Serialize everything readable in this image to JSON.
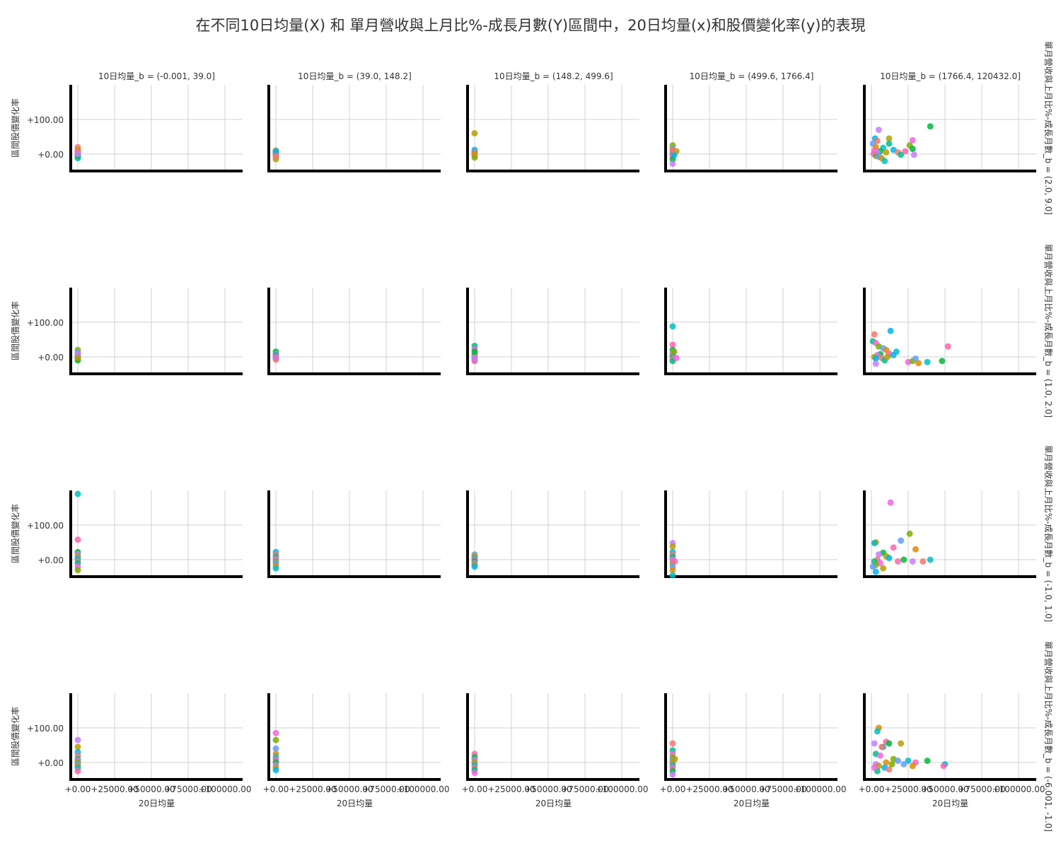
{
  "chart_data": {
    "type": "scatter",
    "title": "在不同10日均量(X) 和 單月營收與上月比%-成長月數(Y)區間中，20日均量(x)和股價變化率(y)的表現",
    "xlabel": "20日均量",
    "ylabel": "區間股價變化率",
    "xlim": [
      -3000,
      115000
    ],
    "ylim": [
      -45,
      200
    ],
    "x_ticks": [
      0,
      25000,
      50000,
      75000,
      100000
    ],
    "x_tick_labels": [
      "+0.00",
      "+25000.00",
      "+50000.00",
      "+75000.00",
      "+100000.00"
    ],
    "y_ticks": [
      0,
      100
    ],
    "y_tick_labels": [
      "+0.00",
      "+100.00"
    ],
    "grid": true,
    "col_labels": [
      "10日均量_b = (-0.001, 39.0]",
      "10日均量_b = (39.0, 148.2]",
      "10日均量_b = (148.2, 499.6]",
      "10日均量_b = (499.6, 1766.4]",
      "10日均量_b = (1766.4, 120432.0]"
    ],
    "row_labels": [
      "單月營收與上月比%-成長月數_b = (2.0, 9.0]",
      "單月營收與上月比%-成長月數_b = (1.0, 2.0]",
      "單月營收與上月比%-成長月數_b = (-1.0, 1.0]",
      "單月營收與上月比%-成長月數_b = (-6.001, -1.0]"
    ],
    "panels": [
      [
        {
          "points": [
            [
              0,
              20
            ],
            [
              0,
              8
            ],
            [
              0,
              2
            ],
            [
              0,
              -3
            ],
            [
              0,
              -8
            ],
            [
              0,
              12
            ],
            [
              0,
              -12
            ],
            [
              0,
              5
            ],
            [
              0,
              -5
            ],
            [
              0,
              0
            ]
          ]
        },
        {
          "points": [
            [
              0,
              10
            ],
            [
              0,
              5
            ],
            [
              0,
              0
            ],
            [
              0,
              -3
            ],
            [
              0,
              -8
            ],
            [
              0,
              -15
            ],
            [
              0,
              8
            ],
            [
              0,
              -5
            ]
          ]
        },
        {
          "points": [
            [
              0,
              60
            ],
            [
              0,
              12
            ],
            [
              0,
              5
            ],
            [
              0,
              0
            ],
            [
              0,
              -5
            ],
            [
              0,
              -10
            ],
            [
              0,
              8
            ],
            [
              0,
              2
            ]
          ]
        },
        {
          "points": [
            [
              0,
              25
            ],
            [
              0,
              15
            ],
            [
              0,
              8
            ],
            [
              0,
              0
            ],
            [
              0,
              -5
            ],
            [
              0,
              -15
            ],
            [
              0,
              -28
            ],
            [
              2500,
              8
            ],
            [
              1000,
              -3
            ],
            [
              0,
              12
            ]
          ]
        },
        {
          "points": [
            [
              40000,
              80
            ],
            [
              5000,
              70
            ],
            [
              12000,
              45
            ],
            [
              2500,
              45
            ],
            [
              4000,
              38
            ],
            [
              12000,
              30
            ],
            [
              28000,
              40
            ],
            [
              26000,
              25
            ],
            [
              1000,
              30
            ],
            [
              3000,
              20
            ],
            [
              8000,
              18
            ],
            [
              2000,
              10
            ],
            [
              6000,
              8
            ],
            [
              4000,
              5
            ],
            [
              10000,
              5
            ],
            [
              15000,
              12
            ],
            [
              18000,
              5
            ],
            [
              20000,
              -2
            ],
            [
              1500,
              0
            ],
            [
              3000,
              -5
            ],
            [
              5000,
              -8
            ],
            [
              7000,
              -12
            ],
            [
              9000,
              -20
            ],
            [
              23000,
              8
            ],
            [
              28000,
              15
            ],
            [
              29000,
              -2
            ]
          ]
        }
      ],
      [
        {
          "points": [
            [
              0,
              20
            ],
            [
              0,
              12
            ],
            [
              0,
              5
            ],
            [
              0,
              0
            ],
            [
              0,
              -5
            ],
            [
              0,
              -10
            ],
            [
              0,
              8
            ],
            [
              0,
              -3
            ]
          ]
        },
        {
          "points": [
            [
              0,
              15
            ],
            [
              0,
              8
            ],
            [
              0,
              2
            ],
            [
              0,
              -4
            ],
            [
              0,
              -8
            ],
            [
              0,
              5
            ],
            [
              0,
              0
            ]
          ]
        },
        {
          "points": [
            [
              0,
              32
            ],
            [
              0,
              22
            ],
            [
              0,
              12
            ],
            [
              0,
              5
            ],
            [
              0,
              0
            ],
            [
              0,
              -8
            ],
            [
              0,
              -12
            ],
            [
              0,
              15
            ],
            [
              0,
              -3
            ]
          ]
        },
        {
          "points": [
            [
              0,
              88
            ],
            [
              0,
              35
            ],
            [
              0,
              20
            ],
            [
              0,
              12
            ],
            [
              0,
              5
            ],
            [
              0,
              0
            ],
            [
              0,
              -6
            ],
            [
              0,
              -12
            ],
            [
              2500,
              -3
            ],
            [
              1000,
              15
            ]
          ]
        },
        {
          "points": [
            [
              13000,
              75
            ],
            [
              2000,
              65
            ],
            [
              1000,
              45
            ],
            [
              3000,
              40
            ],
            [
              5000,
              30
            ],
            [
              8000,
              25
            ],
            [
              10000,
              20
            ],
            [
              17000,
              15
            ],
            [
              12000,
              10
            ],
            [
              6000,
              8
            ],
            [
              4000,
              5
            ],
            [
              2000,
              0
            ],
            [
              3000,
              -5
            ],
            [
              7000,
              -3
            ],
            [
              9000,
              -10
            ],
            [
              25000,
              -15
            ],
            [
              28000,
              -12
            ],
            [
              30000,
              -5
            ],
            [
              32000,
              -18
            ],
            [
              38000,
              -15
            ],
            [
              52000,
              30
            ],
            [
              48000,
              -12
            ],
            [
              3000,
              -20
            ],
            [
              11000,
              0
            ],
            [
              15000,
              5
            ]
          ]
        }
      ],
      [
        {
          "points": [
            [
              0,
              190
            ],
            [
              0,
              58
            ],
            [
              0,
              22
            ],
            [
              0,
              15
            ],
            [
              0,
              8
            ],
            [
              0,
              2
            ],
            [
              0,
              -5
            ],
            [
              0,
              -10
            ],
            [
              0,
              -20
            ],
            [
              0,
              -30
            ]
          ]
        },
        {
          "points": [
            [
              0,
              22
            ],
            [
              0,
              15
            ],
            [
              0,
              8
            ],
            [
              0,
              2
            ],
            [
              0,
              -5
            ],
            [
              0,
              -10
            ],
            [
              0,
              -18
            ],
            [
              0,
              -25
            ]
          ]
        },
        {
          "points": [
            [
              0,
              15
            ],
            [
              0,
              10
            ],
            [
              0,
              5
            ],
            [
              0,
              0
            ],
            [
              0,
              -5
            ],
            [
              0,
              -10
            ],
            [
              0,
              -15
            ],
            [
              0,
              -20
            ]
          ]
        },
        {
          "points": [
            [
              0,
              48
            ],
            [
              0,
              38
            ],
            [
              0,
              22
            ],
            [
              0,
              15
            ],
            [
              0,
              8
            ],
            [
              0,
              0
            ],
            [
              0,
              -10
            ],
            [
              0,
              -20
            ],
            [
              0,
              -30
            ],
            [
              0,
              -45
            ],
            [
              1500,
              -5
            ]
          ]
        },
        {
          "points": [
            [
              13000,
              165
            ],
            [
              26000,
              75
            ],
            [
              20000,
              55
            ],
            [
              3000,
              50
            ],
            [
              2000,
              48
            ],
            [
              15000,
              35
            ],
            [
              8000,
              20
            ],
            [
              5000,
              15
            ],
            [
              10000,
              10
            ],
            [
              12000,
              5
            ],
            [
              4000,
              0
            ],
            [
              2000,
              -5
            ],
            [
              6000,
              -10
            ],
            [
              3000,
              -15
            ],
            [
              1000,
              -20
            ],
            [
              30000,
              30
            ],
            [
              40000,
              0
            ],
            [
              18000,
              -5
            ],
            [
              22000,
              0
            ],
            [
              28000,
              -5
            ],
            [
              8000,
              -25
            ],
            [
              3000,
              -35
            ],
            [
              35000,
              -5
            ]
          ]
        }
      ],
      [
        {
          "points": [
            [
              0,
              65
            ],
            [
              0,
              45
            ],
            [
              0,
              30
            ],
            [
              0,
              20
            ],
            [
              0,
              10
            ],
            [
              0,
              5
            ],
            [
              0,
              0
            ],
            [
              0,
              -5
            ],
            [
              0,
              -10
            ],
            [
              0,
              -15
            ],
            [
              0,
              -25
            ]
          ]
        },
        {
          "points": [
            [
              0,
              85
            ],
            [
              0,
              65
            ],
            [
              0,
              40
            ],
            [
              0,
              25
            ],
            [
              0,
              15
            ],
            [
              0,
              8
            ],
            [
              0,
              0
            ],
            [
              0,
              -8
            ],
            [
              0,
              -15
            ],
            [
              0,
              -22
            ]
          ]
        },
        {
          "points": [
            [
              0,
              25
            ],
            [
              0,
              15
            ],
            [
              0,
              8
            ],
            [
              0,
              0
            ],
            [
              0,
              -8
            ],
            [
              0,
              -15
            ],
            [
              0,
              -22
            ],
            [
              0,
              -30
            ]
          ]
        },
        {
          "points": [
            [
              0,
              55
            ],
            [
              0,
              35
            ],
            [
              0,
              25
            ],
            [
              0,
              15
            ],
            [
              0,
              8
            ],
            [
              0,
              0
            ],
            [
              0,
              -8
            ],
            [
              0,
              -15
            ],
            [
              0,
              -25
            ],
            [
              0,
              -35
            ],
            [
              1500,
              10
            ]
          ]
        },
        {
          "points": [
            [
              5000,
              100
            ],
            [
              4000,
              90
            ],
            [
              10000,
              60
            ],
            [
              12000,
              55
            ],
            [
              2000,
              55
            ],
            [
              20000,
              55
            ],
            [
              8000,
              45
            ],
            [
              7000,
              45
            ],
            [
              3000,
              25
            ],
            [
              6000,
              20
            ],
            [
              15000,
              10
            ],
            [
              18000,
              5
            ],
            [
              10000,
              0
            ],
            [
              25000,
              5
            ],
            [
              30000,
              0
            ],
            [
              38000,
              5
            ],
            [
              3000,
              -5
            ],
            [
              5000,
              -10
            ],
            [
              9000,
              -15
            ],
            [
              12000,
              -20
            ],
            [
              4000,
              -25
            ],
            [
              2000,
              -15
            ],
            [
              14000,
              -5
            ],
            [
              22000,
              -5
            ],
            [
              28000,
              -10
            ],
            [
              50000,
              -5
            ],
            [
              49000,
              -10
            ]
          ]
        }
      ]
    ]
  },
  "colors": [
    "#F8766D",
    "#DE8C00",
    "#B79F00",
    "#7CAE00",
    "#00BA38",
    "#00C08B",
    "#00BFC4",
    "#00B4F0",
    "#619CFF",
    "#C77CFF",
    "#F564E3",
    "#FF64B0"
  ]
}
